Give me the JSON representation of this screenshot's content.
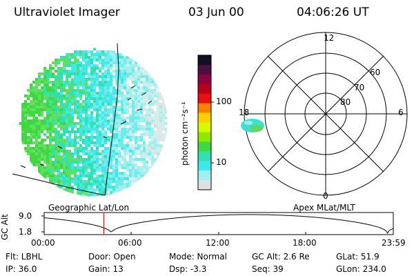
{
  "header": {
    "instrument": "Ultraviolet Imager",
    "date": "03 Jun 00",
    "time": "04:06:26 UT"
  },
  "colorbar": {
    "unit_label": "photon cm⁻²s⁻¹",
    "ticks": [
      "100",
      "10"
    ],
    "colors": [
      "#101020",
      "#4a1040",
      "#8a0040",
      "#b80018",
      "#e81010",
      "#ff8000",
      "#ffd000",
      "#d8f800",
      "#90e800",
      "#40d840",
      "#30e0b0",
      "#40e8e8",
      "#a0f0f0",
      "#e0e0e0"
    ]
  },
  "left_panel": {
    "label": "Geographic Lat/Lon"
  },
  "right_panel": {
    "label": "Apex MLat/MLT",
    "mlt_labels": {
      "top": "12",
      "bottom": "0",
      "left": "18",
      "right": "6"
    },
    "lat_labels": [
      "60",
      "70",
      "80"
    ]
  },
  "timeline": {
    "ylabel": "GC Alt",
    "y_ticks": [
      "9.0",
      "1.8"
    ],
    "x_ticks": [
      "00:00",
      "06:00",
      "12:00",
      "18:00",
      "23:59"
    ],
    "marker_fraction": 0.171
  },
  "status": {
    "flt": "Flt: LBHL",
    "door": "Door: Open",
    "mode": "Mode: Normal",
    "gcalt": "GC Alt: 2.6 Re",
    "glat": "GLat:  51.9",
    "ip": "IP: 36.0",
    "gain": "Gain: 13",
    "dsp": "Dsp:    -3.3",
    "seq": "Seq: 39",
    "glon": "GLon: 234.0"
  }
}
